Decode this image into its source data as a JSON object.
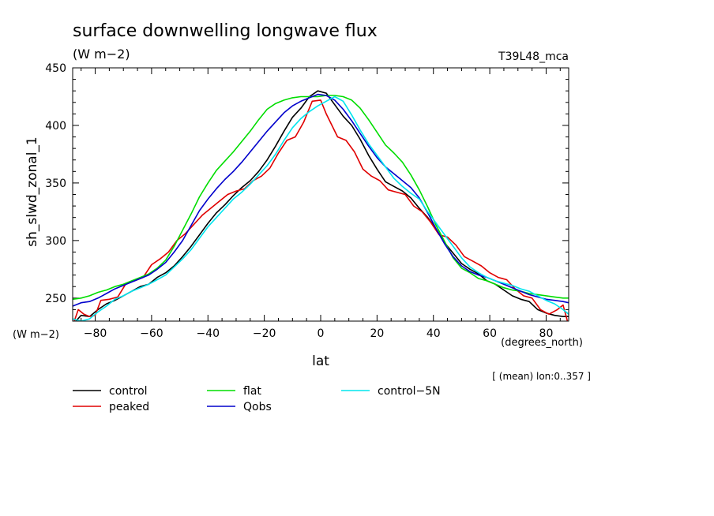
{
  "chart_data": {
    "type": "line",
    "title": "surface downwelling longwave flux",
    "subtitle": "(W m−2)",
    "tag": "T39L48_mca",
    "xlabel": "lat",
    "ylabel": "sh_slwd_zonal_1",
    "x_units": "(degrees_north)",
    "y_units": "(W m−2)",
    "note": "[ (mean) lon:0..357 ]",
    "xlim": [
      -88,
      88
    ],
    "ylim": [
      230,
      450
    ],
    "x_ticks": [
      -80,
      -60,
      -40,
      -20,
      0,
      20,
      40,
      60,
      80
    ],
    "y_ticks": [
      250,
      300,
      350,
      400,
      450
    ],
    "x_tick_labels": [
      "−80",
      "−60",
      "−40",
      "−20",
      "0",
      "20",
      "40",
      "60",
      "80"
    ],
    "y_tick_labels": [
      "250",
      "300",
      "350",
      "400",
      "450"
    ],
    "grid": false,
    "legend_position": "bottom",
    "series": [
      {
        "name": "control",
        "color": "#000000",
        "x": [
          -88,
          -85,
          -82,
          -79,
          -76,
          -73,
          -70,
          -67,
          -64,
          -61,
          -58,
          -55,
          -52,
          -49,
          -46,
          -43,
          -40,
          -37,
          -34,
          -31,
          -28,
          -25,
          -22,
          -19,
          -16,
          -13,
          -10,
          -7,
          -4,
          -1,
          2,
          5,
          8,
          11,
          14,
          17,
          20,
          23,
          26,
          29,
          32,
          35,
          38,
          41,
          44,
          47,
          50,
          53,
          56,
          59,
          62,
          65,
          68,
          71,
          74,
          77,
          80,
          83,
          86,
          88
        ],
        "y": [
          227,
          235,
          234,
          240,
          245,
          248,
          252,
          256,
          260,
          262,
          268,
          272,
          278,
          286,
          295,
          305,
          315,
          324,
          331,
          339,
          346,
          352,
          360,
          370,
          382,
          395,
          407,
          415,
          425,
          430,
          428,
          418,
          408,
          400,
          388,
          374,
          362,
          351,
          347,
          343,
          337,
          328,
          320,
          310,
          298,
          289,
          280,
          275,
          271,
          265,
          262,
          257,
          252,
          249,
          247,
          240,
          237,
          235,
          234,
          234
        ]
      },
      {
        "name": "peaked",
        "color": "#e00000",
        "x": [
          -88,
          -86,
          -84,
          -82,
          -80,
          -78,
          -75,
          -72,
          -69,
          -66,
          -63,
          -60,
          -57,
          -54,
          -51,
          -48,
          -45,
          -42,
          -39,
          -36,
          -33,
          -30,
          -27,
          -24,
          -21,
          -18,
          -15,
          -12,
          -9,
          -6,
          -3,
          0,
          2,
          4,
          6,
          9,
          12,
          15,
          18,
          21,
          24,
          27,
          30,
          33,
          36,
          39,
          42,
          45,
          48,
          51,
          54,
          57,
          60,
          63,
          66,
          69,
          72,
          75,
          78,
          81,
          84,
          86,
          88
        ],
        "y": [
          226,
          240,
          236,
          234,
          235,
          248,
          249,
          251,
          263,
          265,
          268,
          279,
          284,
          290,
          300,
          306,
          314,
          322,
          328,
          334,
          340,
          343,
          345,
          352,
          356,
          363,
          376,
          387,
          390,
          403,
          421,
          422,
          410,
          400,
          390,
          387,
          377,
          362,
          356,
          352,
          344,
          342,
          340,
          330,
          325,
          316,
          305,
          303,
          296,
          286,
          282,
          278,
          272,
          268,
          266,
          258,
          252,
          250,
          240,
          236,
          240,
          244,
          226
        ]
      },
      {
        "name": "flat",
        "color": "#00dd00",
        "x": [
          -88,
          -85,
          -82,
          -79,
          -76,
          -73,
          -70,
          -67,
          -64,
          -61,
          -58,
          -55,
          -52,
          -49,
          -46,
          -43,
          -40,
          -37,
          -34,
          -31,
          -28,
          -25,
          -22,
          -19,
          -16,
          -13,
          -10,
          -7,
          -4,
          -1,
          2,
          5,
          8,
          11,
          14,
          17,
          20,
          23,
          26,
          29,
          32,
          35,
          38,
          41,
          44,
          47,
          50,
          53,
          56,
          59,
          62,
          65,
          68,
          71,
          74,
          77,
          80,
          83,
          86,
          88
        ],
        "y": [
          249,
          250,
          252,
          255,
          257,
          260,
          262,
          265,
          268,
          271,
          276,
          283,
          295,
          309,
          323,
          338,
          350,
          361,
          369,
          377,
          386,
          395,
          405,
          414,
          419,
          422,
          424,
          425,
          425,
          425,
          426,
          426,
          425,
          422,
          415,
          405,
          394,
          383,
          376,
          368,
          357,
          344,
          329,
          313,
          299,
          285,
          276,
          272,
          267,
          265,
          262,
          259,
          257,
          256,
          254,
          253,
          252,
          251,
          250,
          250
        ]
      },
      {
        "name": "Qobs",
        "color": "#0000cc",
        "x": [
          -88,
          -85,
          -82,
          -79,
          -76,
          -73,
          -70,
          -67,
          -64,
          -61,
          -58,
          -55,
          -52,
          -49,
          -46,
          -43,
          -40,
          -37,
          -34,
          -31,
          -28,
          -25,
          -22,
          -19,
          -16,
          -13,
          -10,
          -7,
          -4,
          -1,
          2,
          5,
          8,
          11,
          14,
          17,
          20,
          23,
          26,
          29,
          32,
          35,
          38,
          41,
          44,
          47,
          50,
          53,
          56,
          59,
          62,
          65,
          68,
          71,
          74,
          77,
          80,
          83,
          86,
          88
        ],
        "y": [
          243,
          246,
          247,
          250,
          254,
          258,
          261,
          264,
          267,
          270,
          275,
          281,
          290,
          300,
          313,
          326,
          336,
          345,
          353,
          360,
          368,
          377,
          386,
          395,
          403,
          411,
          417,
          421,
          424,
          427,
          426,
          422,
          414,
          404,
          393,
          382,
          372,
          364,
          358,
          352,
          346,
          337,
          324,
          310,
          297,
          286,
          278,
          273,
          270,
          268,
          265,
          262,
          259,
          256,
          253,
          251,
          249,
          248,
          247,
          246
        ]
      },
      {
        "name": "control−5N",
        "color": "#00e5ee",
        "x": [
          -88,
          -85,
          -82,
          -79,
          -76,
          -73,
          -70,
          -67,
          -64,
          -61,
          -58,
          -55,
          -52,
          -49,
          -46,
          -43,
          -40,
          -37,
          -34,
          -31,
          -28,
          -25,
          -22,
          -19,
          -16,
          -13,
          -10,
          -7,
          -4,
          -1,
          2,
          5,
          8,
          11,
          14,
          17,
          20,
          23,
          26,
          29,
          32,
          35,
          38,
          41,
          44,
          47,
          50,
          53,
          56,
          59,
          62,
          65,
          68,
          71,
          74,
          77,
          80,
          83,
          86,
          88
        ],
        "y": [
          232,
          230,
          232,
          238,
          243,
          249,
          252,
          256,
          259,
          262,
          266,
          270,
          277,
          284,
          292,
          302,
          312,
          320,
          328,
          336,
          342,
          349,
          357,
          365,
          375,
          387,
          398,
          406,
          412,
          417,
          421,
          425,
          421,
          409,
          396,
          384,
          374,
          364,
          354,
          347,
          341,
          336,
          325,
          315,
          305,
          295,
          285,
          277,
          272,
          268,
          265,
          263,
          261,
          258,
          256,
          252,
          248,
          245,
          240,
          236
        ]
      }
    ]
  }
}
